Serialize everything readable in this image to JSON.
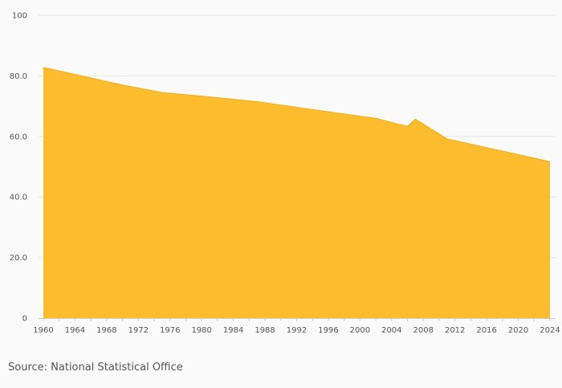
{
  "chart_data": {
    "type": "area",
    "title": "",
    "xlabel": "",
    "ylabel": "",
    "x": [
      1960,
      1966,
      1970,
      1975,
      1980,
      1987,
      1995,
      2002,
      2006,
      2007,
      2011,
      2024
    ],
    "series": [
      {
        "values": [
          82.8,
          79.3,
          77.0,
          74.5,
          73.3,
          71.5,
          68.5,
          66.0,
          63.3,
          65.7,
          59.2,
          51.7
        ],
        "color": "#fbbc2e"
      }
    ],
    "xlim": [
      1960,
      2024
    ],
    "ylim": [
      0,
      100
    ],
    "x_ticks": [
      "1960",
      "1964",
      "1968",
      "1972",
      "1976",
      "1980",
      "1984",
      "1988",
      "1992",
      "1996",
      "2000",
      "2004",
      "2008",
      "2012",
      "2016",
      "2020",
      "2024"
    ],
    "x_tick_values": [
      1960,
      1964,
      1968,
      1972,
      1976,
      1980,
      1984,
      1988,
      1992,
      1996,
      2000,
      2004,
      2008,
      2012,
      2016,
      2020,
      2024
    ],
    "y_ticks": [
      "0",
      "20.0",
      "40.0",
      "60.0",
      "80.0",
      "100"
    ],
    "y_tick_values": [
      0,
      20,
      40,
      60,
      80,
      100
    ],
    "grid": true,
    "legend": "none",
    "colors": {
      "area": "#fbbc2e",
      "grid": "#e6e6e6",
      "axis": "#cccccc",
      "label": "#555555",
      "background": "#fafafa"
    }
  },
  "source": "Source: National Statistical Office"
}
